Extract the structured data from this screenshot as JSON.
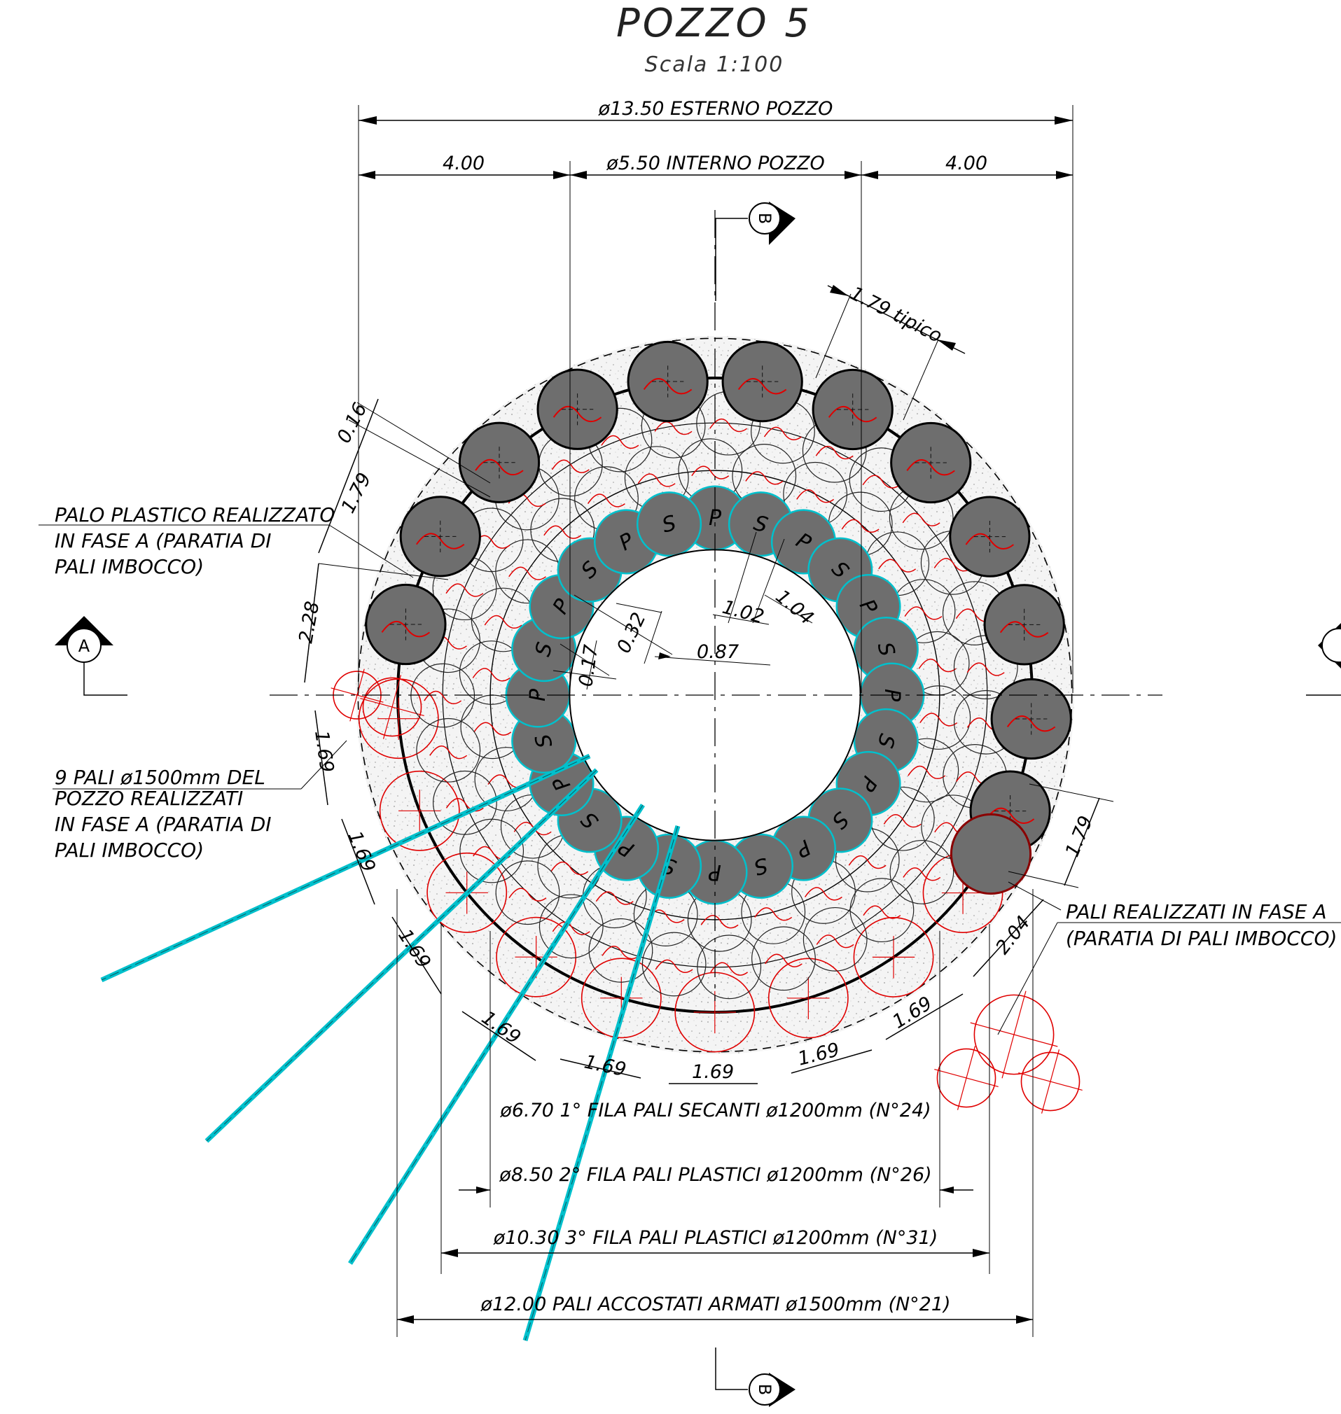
{
  "title": "POZZO 5",
  "scale": "Scala 1:100",
  "dimensions": {
    "outer_diameter": "ø13.50 ESTERNO POZZO",
    "inner_diameter": "ø5.50 INTERNO POZZO",
    "left_offset": "4.00",
    "right_offset": "4.00",
    "typical_spacing": "1.79 tipico",
    "d_016": "0.16",
    "d_179_top": "1.79",
    "d_228": "2.28",
    "d_169_a": "1.69",
    "d_169_b": "1.69",
    "d_169_c": "1.69",
    "d_169_d": "1.69",
    "d_169_e": "1.69",
    "d_169_f": "1.69",
    "d_169_g": "1.69",
    "d_169_h": "1.69",
    "d_179_right": "1.79",
    "d_204": "2.04",
    "d_032": "0.32",
    "d_017": "0.17",
    "d_087": "0.87",
    "d_102": "1.02",
    "d_104": "1.04"
  },
  "rings": {
    "ring1": "ø6.70 1° FILA PALI SECANTI ø1200mm (N°24)",
    "ring2": "ø8.50 2° FILA PALI PLASTICI ø1200mm (N°26)",
    "ring3": "ø10.30 3° FILA PALI PLASTICI ø1200mm (N°31)",
    "ring4": "ø12.00 PALI ACCOSTATI ARMATI ø1500mm (N°21)"
  },
  "notes": {
    "plastic_pile_line1": "PALO PLASTICO REALIZZATO",
    "plastic_pile_line2": "IN FASE A (PARATIA DI",
    "plastic_pile_line3": "PALI IMBOCCO)",
    "nine_piles_line1": "9 PALI ø1500mm DEL",
    "nine_piles_line2": "POZZO REALIZZATI",
    "nine_piles_line3": "IN FASE A (PARATIA DI",
    "nine_piles_line4": "PALI IMBOCCO)",
    "phase_a_line1": "PALI REALIZZATI IN FASE A",
    "phase_a_line2": "(PARATIA DI PALI IMBOCCO)"
  },
  "section_marks": {
    "a": "A",
    "b": "B"
  },
  "pile_labels": {
    "primary": "P",
    "secondary": "S"
  },
  "colors": {
    "reinforced_pile": "#6e6e6e",
    "existing_pile": "#e00000",
    "secant_outline": "#00c0cc",
    "line": "#000000"
  }
}
